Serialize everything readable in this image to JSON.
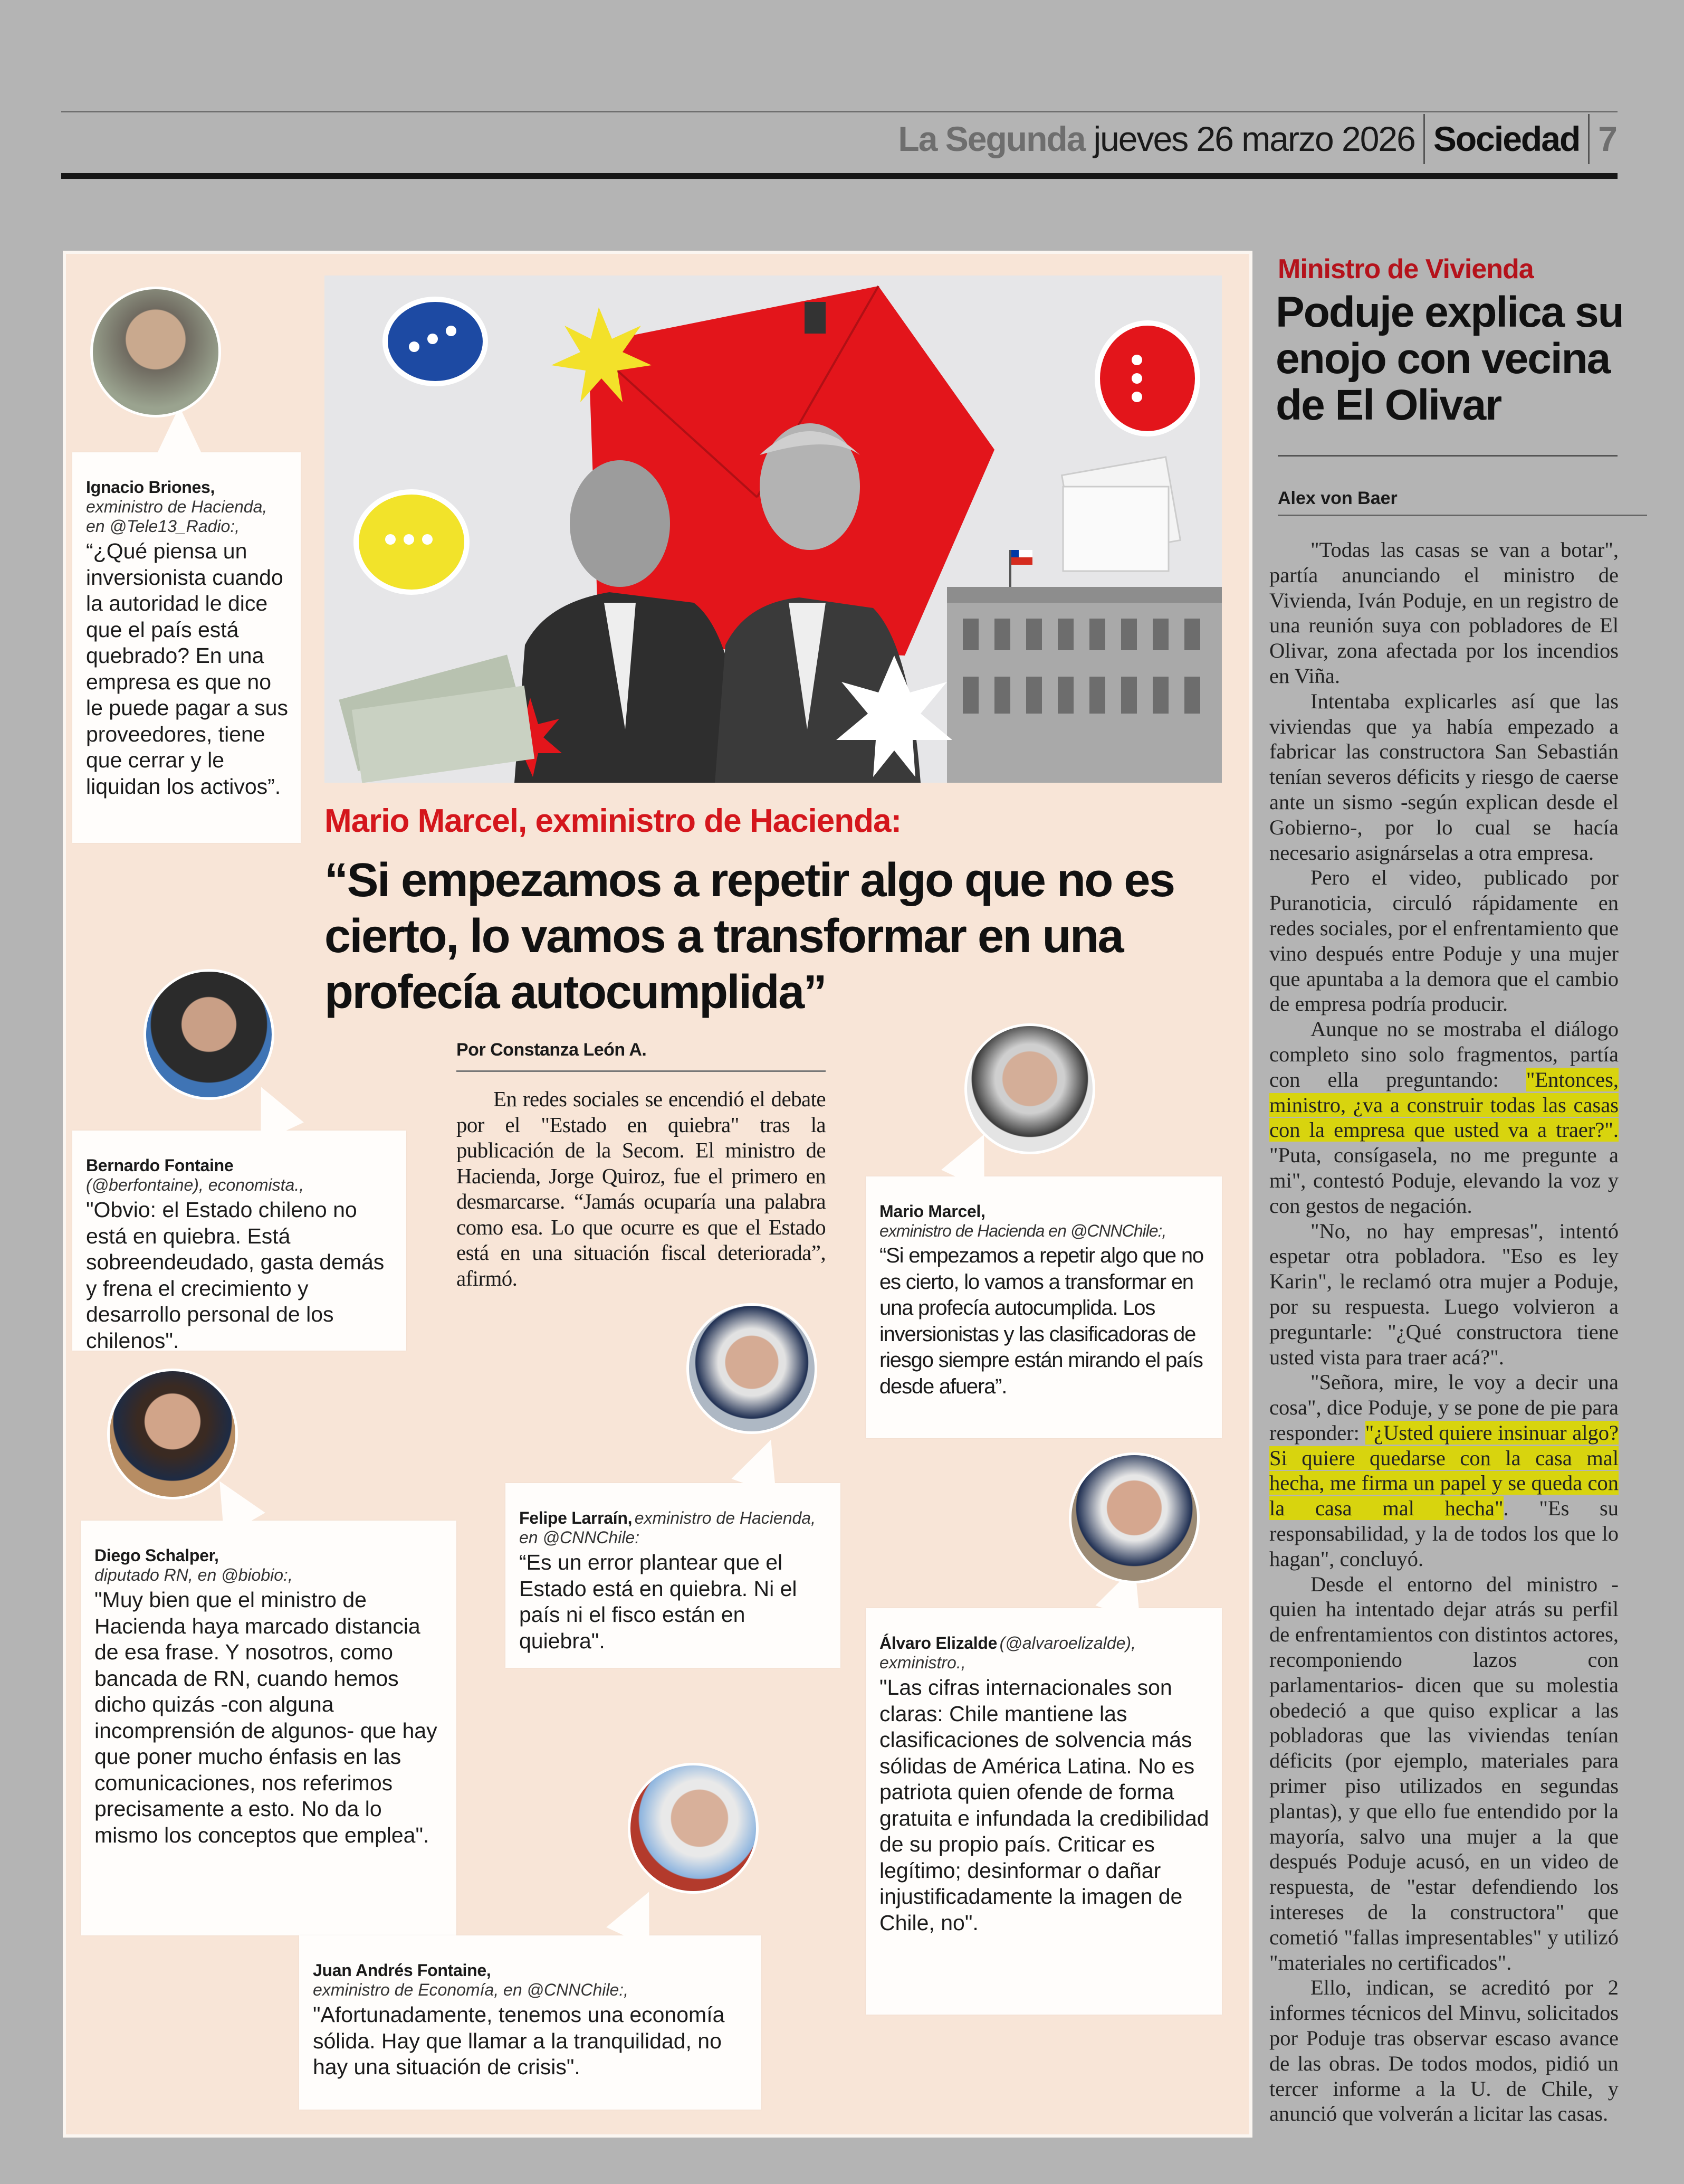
{
  "header": {
    "publication": "La Segunda",
    "date": "jueves 26 marzo 2026",
    "section": "Sociedad",
    "page": "7"
  },
  "main_article": {
    "kicker": "Mario Marcel, exministro de Hacienda:",
    "headline": "“Si empezamos a repetir algo que no es cierto, lo vamos a transformar en una profecía autocumplida”",
    "byline": "Por Constanza León A.",
    "lead": "En redes sociales se encendió el debate por el \"Estado en quiebra\" tras la publicación de la Secom. El ministro de Hacienda, Jorge Quiroz, fue el primero en desmarcarse. “Jamás ocuparía una palabra como esa. Lo que ocurre es que el Estado está en una situación fiscal deteriorada”, afirmó."
  },
  "quotes": [
    {
      "name": "Ignacio Briones,",
      "role": "exministro de Hacienda, en @Tele13_Radio:,",
      "text": "“¿Qué piensa un inversionista cuando la autoridad le dice que el país está quebrado? En una empresa es que no le puede pagar a sus proveedores, tiene que cerrar y le liquidan los activos”."
    },
    {
      "name": "Bernardo Fontaine",
      "role": "(@berfontaine), economista.,",
      "text": "\"Obvio: el Estado chileno no está en quiebra. Está sobreendeudado, gasta demás y frena el crecimiento y desarrollo personal de los chilenos\"."
    },
    {
      "name": "Diego Schalper,",
      "role": "diputado RN, en @biobio:,",
      "text": "\"Muy bien que el ministro de Hacienda haya marcado distancia de esa frase. Y nosotros, como bancada de RN, cuando hemos dicho quizás -con alguna incomprensión de algunos- que hay que poner mucho énfasis en las comunicaciones, nos referimos precisamente a esto. No da lo mismo los conceptos que emplea\"."
    },
    {
      "name": "Juan Andrés Fontaine,",
      "role": "exministro de Economía, en @CNNChile:,",
      "text": "\"Afortunadamente, tenemos una economía sólida. Hay que llamar a la tranquilidad, no hay una situación de crisis\"."
    },
    {
      "name": "Felipe Larraín,",
      "role": "exministro de Hacienda, en @CNNChile:",
      "text": "“Es un error plantear que el Estado está en quiebra. Ni el país ni el fisco están en quiebra\"."
    },
    {
      "name": "Mario Marcel,",
      "role": "exministro de Hacienda en @CNNChile:,",
      "text": "“Si empezamos a repetir algo que no es cierto, lo vamos a transformar en una profecía autocumplida. Los inversionistas y las clasificadoras de riesgo siempre están mirando el país desde afuera”."
    },
    {
      "name": "Álvaro Elizalde",
      "role": "(@alvaroelizalde), exministro.,",
      "text": "\"Las cifras internacionales son claras: Chile mantiene las clasificaciones de solvencia más sólidas de América Latina. No es patriota quien ofende de forma gratuita e infundada la credibilidad de su propio país. Criticar es legítimo; desinformar o dañar injustificadamente la imagen de Chile, no\"."
    }
  ],
  "side_article": {
    "kicker": "Ministro de Vivienda",
    "headline": "Poduje explica su enojo con vecina de El Olivar",
    "author": "Alex von Baer",
    "paragraphs": [
      [
        {
          "text": "\"Todas las casas se van a botar\", partía anunciando el ministro de Vivienda, Iván Poduje, en un registro de una reunión suya con pobladores de El Olivar, zona afectada por los incendios en Viña."
        }
      ],
      [
        {
          "text": "Intentaba explicarles así que las viviendas que ya había empezado a fabricar las constructora San Sebastián tenían severos déficits y riesgo de caerse ante un sismo -según explican desde el Gobierno-, por lo cual se hacía necesario asignárselas a otra empresa."
        }
      ],
      [
        {
          "text": "Pero el video, publicado por Puranoticia, circuló rápidamente en redes sociales, por el enfrentamiento que vino después entre Poduje y una mujer que apuntaba a la demora que el cambio de empresa podría producir."
        }
      ],
      [
        {
          "text": "Aunque no se mostraba el diálogo completo sino solo fragmentos, partía con ella preguntando: "
        },
        {
          "text": "\"Entonces, ministro, ¿va a construir todas las casas con la empresa que usted va a traer?\".",
          "highlight": true
        },
        {
          "text": " \"Puta, consígasela, no me pregunte a mi\", contestó Poduje, elevando la voz y con gestos de negación."
        }
      ],
      [
        {
          "text": "\"No, no hay empresas\", intentó espetar otra pobladora. \"Eso es ley Karin\", le reclamó otra mujer a Poduje, por su respuesta. Luego volvieron a preguntarle: \"¿Qué constructora tiene usted vista para traer acá?\"."
        }
      ],
      [
        {
          "text": "\"Señora, mire, le voy a decir una cosa\", dice Poduje, y se pone de pie para responder: "
        },
        {
          "text": "\"¿Usted quiere insinuar algo? Si quiere quedarse con la casa mal hecha, me firma un papel y se queda con la casa mal hecha\"",
          "highlight": true
        },
        {
          "text": ". \"Es su responsabilidad, y la de todos los que lo hagan\", concluyó."
        }
      ],
      [
        {
          "text": "Desde el entorno del ministro -quien ha intentado dejar atrás su perfil de enfrentamientos con distintos actores, recomponiendo lazos con parlamentarios- dicen que su molestia obedeció a que quiso explicar a las pobladoras que las viviendas tenían déficits (por ejemplo, materiales para primer piso utilizados en segundas plantas), y que ello fue entendido por la mayoría, salvo una mujer a la que después Poduje acusó, en un video de respuesta, de \"estar defendiendo los intereses de la constructora\" que cometió \"fallas impresentables\" y utilizó \"materiales no certificados\"."
        }
      ],
      [
        {
          "text": "Ello, indican, se acreditó por 2 informes técnicos del Minvu, solicitados por Poduje tras observar escaso avance de las obras. De todos modos, pidió un tercer informe a la U. de Chile, y anunció que volverán a licitar las casas."
        }
      ]
    ]
  },
  "colors": {
    "accent_red": "#d4161c",
    "panel": "#f8e5d7",
    "highlight": "#d8d40e",
    "background": "#b4b4b4"
  }
}
